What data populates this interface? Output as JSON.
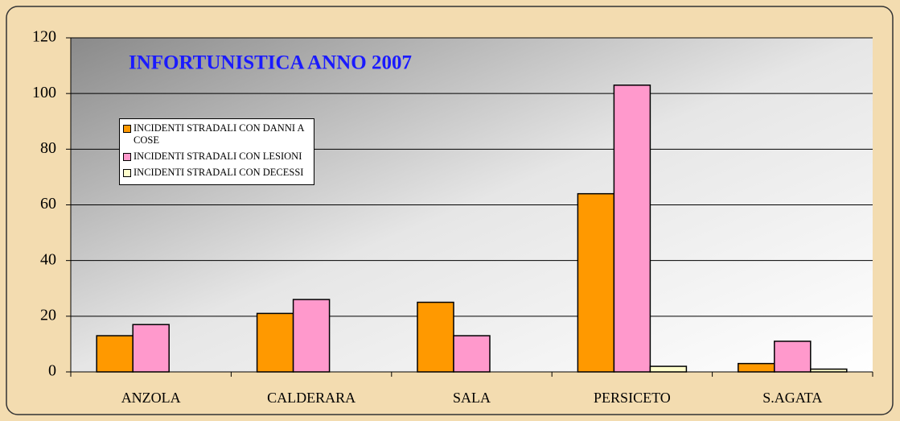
{
  "chart_data": {
    "type": "bar",
    "title": "INFORTUNISTICA ANNO 2007",
    "categories": [
      "ANZOLA",
      "CALDERARA",
      "SALA",
      "PERSICETO",
      "S.AGATA"
    ],
    "series": [
      {
        "name": "INCIDENTI STRADALI CON DANNI A COSE",
        "color": "#ff9900",
        "values": [
          13,
          21,
          25,
          64,
          3
        ]
      },
      {
        "name": "INCIDENTI STRADALI CON LESIONI",
        "color": "#ff99cc",
        "values": [
          17,
          26,
          13,
          103,
          11
        ]
      },
      {
        "name": "INCIDENTI STRADALI CON DECESSI",
        "color": "#ffffcc",
        "values": [
          0,
          0,
          0,
          2,
          1
        ]
      }
    ],
    "ylim": [
      0,
      120
    ],
    "yticks": [
      0,
      20,
      40,
      60,
      80,
      100,
      120
    ],
    "grid": true,
    "legend": "upper left"
  }
}
